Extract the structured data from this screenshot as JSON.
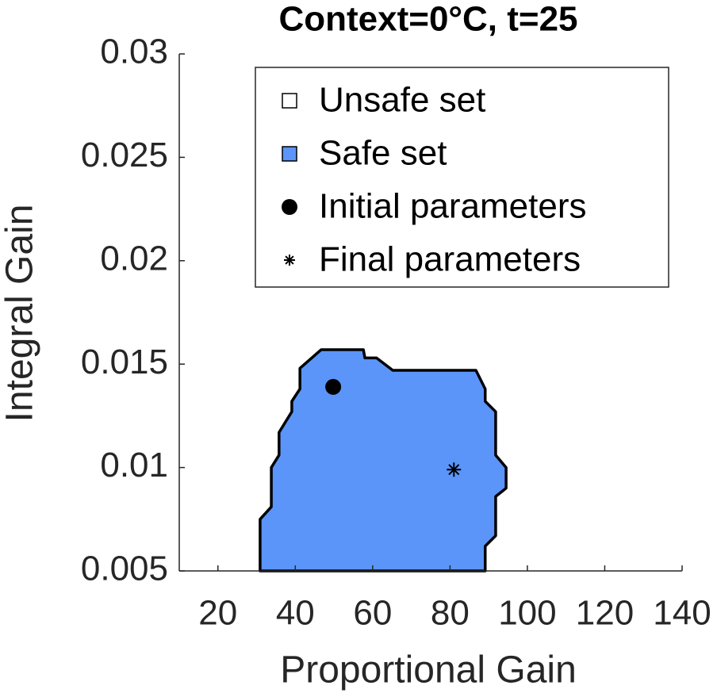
{
  "chart_data": {
    "type": "scatter",
    "title": "Context=0°C, t=25",
    "xlabel": "Proportional Gain",
    "ylabel": "Integral Gain",
    "xlim": [
      10,
      140
    ],
    "xticks": [
      20,
      40,
      60,
      80,
      100,
      120,
      140
    ],
    "ylim": [
      0.005,
      0.03
    ],
    "yticks": [
      0.005,
      0.01,
      0.015,
      0.02,
      0.025,
      0.03
    ],
    "legend": "upper right",
    "series": [
      {
        "name": "Unsafe set",
        "color": "#ffffff",
        "kind": "square"
      },
      {
        "name": "Safe set",
        "color": "#5b95f9",
        "kind": "polygon",
        "x": [
          30.9,
          30.9,
          33.8,
          33.8,
          35.8,
          35.8,
          39.1,
          39.1,
          41.2,
          41.2,
          46.7,
          57.6,
          58,
          61,
          65.2,
          86.7,
          89.1,
          89.1,
          91.8,
          91.8,
          94.5,
          94.5,
          91.8,
          91.8,
          89.1,
          89.1
        ],
        "values": [
          0.005,
          0.0075,
          0.0081,
          0.01,
          0.0106,
          0.0117,
          0.0127,
          0.0132,
          0.0138,
          0.0148,
          0.0157,
          0.0157,
          0.0153,
          0.0153,
          0.0147,
          0.0147,
          0.0138,
          0.0132,
          0.0127,
          0.0106,
          0.01,
          0.009,
          0.0086,
          0.0067,
          0.0062,
          0.005
        ]
      },
      {
        "name": "Initial parameters",
        "color": "#000000",
        "kind": "circle",
        "x": [
          49.8
        ],
        "values": [
          0.0139
        ]
      },
      {
        "name": "Final parameters",
        "color": "#000000",
        "kind": "asterisk",
        "x": [
          81
        ],
        "values": [
          0.0099
        ]
      }
    ]
  }
}
